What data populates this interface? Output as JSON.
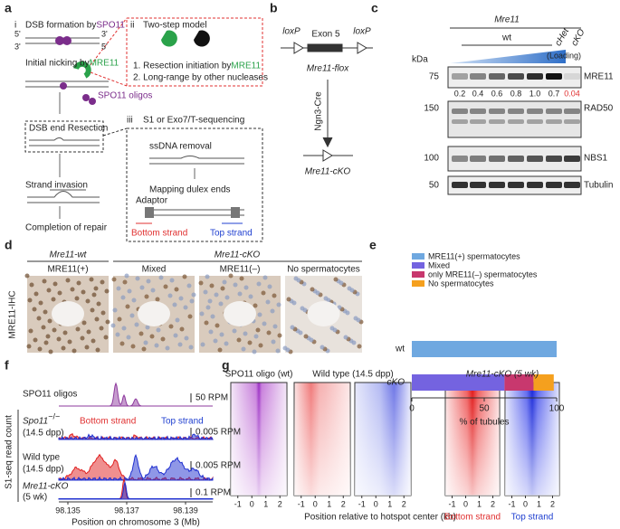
{
  "panel_labels": [
    "a",
    "b",
    "c",
    "d",
    "e",
    "f",
    "g"
  ],
  "a": {
    "i": "i",
    "step1": "DSB formation by ",
    "step1_spo": "SPO11",
    "five1": "5'",
    "three1": "3'",
    "three2": "3'",
    "five2": "5'",
    "step2": "Initial nicking by ",
    "step2_mre": "MRE11",
    "spo11_oligos": "SPO11 oligos",
    "step3": "DSB end Resection",
    "step4": "Strand invasion",
    "step5": "Completion of repair",
    "ii": "ii",
    "ii_title": "Two-step model",
    "ii_1": "1. Resection initiation by ",
    "ii_1_mre": "MRE11",
    "ii_2": "2. Long-range by other nucleases",
    "iii": "iii",
    "iii_title": "S1 or Exo7/T-sequencing",
    "iii_1": "ssDNA removal",
    "iii_2": "Mapping dulex ends",
    "adaptor": "Adaptor",
    "bottom": "Bottom strand",
    "top": "Top strand"
  },
  "b": {
    "loxP_left": "loxP",
    "exon": "Exon 5",
    "loxP_right": "loxP",
    "flox": "Mre11-flox",
    "cre": "Ngn3-Cre",
    "cko": "Mre11-cKO"
  },
  "c": {
    "gene": "Mre11",
    "wt": "wt",
    "chet": "cHet",
    "cko": "cKO",
    "loading": "(Loading)",
    "kda": "kDa",
    "markers": [
      "75",
      "150",
      "100",
      "50"
    ],
    "proteins": [
      "MRE11",
      "RAD50",
      "NBS1",
      "Tubulin"
    ],
    "quant": [
      "0.2",
      "0.4",
      "0.6",
      "0.8",
      "1.0",
      "0.7",
      "0.04"
    ]
  },
  "d": {
    "wt_header": "Mre11-wt",
    "cko_header": "Mre11-cKO",
    "panels": [
      "MRE11(+)",
      "Mixed",
      "MRE11(–)",
      "No spermatocytes"
    ],
    "ylabel": "MRE11-IHC"
  },
  "chart_data": {
    "type": "stacked_barh",
    "categories": [
      "wt",
      "cKO"
    ],
    "series": [
      {
        "name": "MRE11(+) spermatocytes",
        "color": "#6fa8e0",
        "values": [
          100,
          0
        ]
      },
      {
        "name": "Mixed",
        "color": "#7463e0",
        "values": [
          0,
          64
        ]
      },
      {
        "name": "only MRE11(–) spermatocytes",
        "color": "#c8386e",
        "values": [
          0,
          20
        ]
      },
      {
        "name": "No spermatocytes",
        "color": "#f5a01e",
        "values": [
          0,
          14
        ]
      }
    ],
    "xlim": [
      0,
      100
    ],
    "xticks": [
      0,
      50,
      100
    ],
    "xlabel": "% of tubules"
  },
  "f": {
    "tracks": [
      "SPO11 oligos",
      "Spo11",
      "−/−",
      "(14.5 dpp)",
      "Wild type",
      "(14.5 dpp)",
      "Mre11-cKO",
      "(5 wk)"
    ],
    "scales": [
      "50 RPM",
      "0.005 RPM",
      "0.005 RPM",
      "0.1 RPM"
    ],
    "bottom": "Bottom strand",
    "top": "Top strand",
    "ylabel": "S1-seq read count",
    "xticks": [
      "98.135",
      "98.137",
      "98.139"
    ],
    "xlabel": "Position on chromosome 3 (Mb)"
  },
  "g": {
    "titles": [
      "SPO11 oligo (wt)",
      "Wild type (14.5 dpp)",
      "Mre11-cKO (5 wk)"
    ],
    "ticks": [
      "-1",
      "0",
      "1",
      "2"
    ],
    "xlabel": "Position relative to hotspot center (kb)",
    "bottom": "Bottom strand",
    "top": "Top strand"
  }
}
